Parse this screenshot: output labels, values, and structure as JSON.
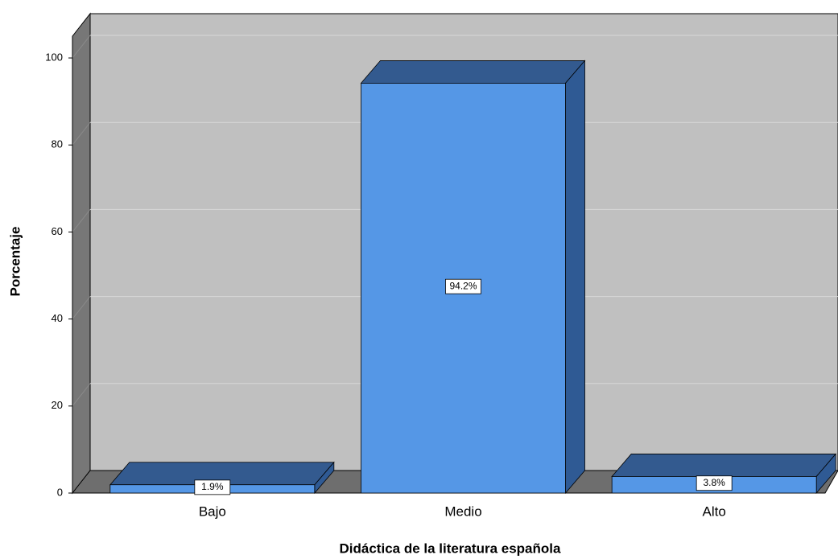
{
  "chart_data": {
    "type": "bar3d",
    "x_label": "Didáctica de la literatura española",
    "y_label": "Porcentaje",
    "categories": [
      "Bajo",
      "Medio",
      "Alto"
    ],
    "values": [
      1.9,
      94.2,
      3.8
    ],
    "value_labels": [
      "1.9%",
      "94.2%",
      "3.8%"
    ],
    "color": "#5597e6",
    "ylim": [
      0,
      105
    ],
    "yticks": [
      0,
      20,
      40,
      60,
      80,
      100
    ],
    "grid": true
  }
}
